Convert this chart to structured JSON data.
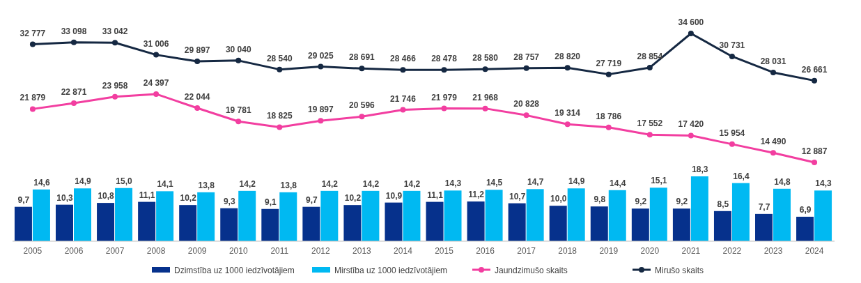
{
  "chart_data": [
    {
      "type": "line",
      "series": [
        {
          "name": "Jaundzimušo skaits",
          "color": "#f23ea0",
          "values": [
            21879,
            22871,
            23958,
            24397,
            22044,
            19781,
            18825,
            19897,
            20596,
            21746,
            21979,
            21968,
            20828,
            19314,
            18786,
            17552,
            17420,
            15954,
            14490,
            12887
          ],
          "value_labels": [
            "21 879",
            "22 871",
            "23 958",
            "24 397",
            "22 044",
            "19 781",
            "18 825",
            "19 897",
            "20 596",
            "21 746",
            "21 979",
            "21 968",
            "20 828",
            "19 314",
            "18 786",
            "17 552",
            "17 420",
            "15 954",
            "14 490",
            "12 887"
          ]
        },
        {
          "name": "Mirušo skaits",
          "color": "#152842",
          "values": [
            32777,
            33098,
            33042,
            31006,
            29897,
            30040,
            28540,
            29025,
            28691,
            28466,
            28478,
            28580,
            28757,
            28820,
            27719,
            28854,
            34600,
            30731,
            28031,
            26661
          ],
          "value_labels": [
            "32 777",
            "33 098",
            "33 042",
            "31 006",
            "29 897",
            "30 040",
            "28 540",
            "29 025",
            "28 691",
            "28 466",
            "28 478",
            "28 580",
            "28 757",
            "28 820",
            "27 719",
            "28 854",
            "34 600",
            "30 731",
            "28 031",
            "26 661"
          ]
        }
      ],
      "tick_labels": false,
      "marker": "circle",
      "legend": "bottom"
    },
    {
      "type": "bar",
      "categories": [
        "2005",
        "2006",
        "2007",
        "2008",
        "2009",
        "2010",
        "2011",
        "2012",
        "2013",
        "2014",
        "2015",
        "2016",
        "2017",
        "2018",
        "2019",
        "2020",
        "2021",
        "2022",
        "2023",
        "2024"
      ],
      "series": [
        {
          "name": "Dzimstība uz 1000 iedzīvotājiem",
          "color": "#06318c",
          "values": [
            9.7,
            10.3,
            10.8,
            11.1,
            10.2,
            9.3,
            9.1,
            9.7,
            10.2,
            10.9,
            11.1,
            11.2,
            10.7,
            10.0,
            9.8,
            9.2,
            9.2,
            8.5,
            7.7,
            6.9
          ],
          "value_labels": [
            "9,7",
            "10,3",
            "10,8",
            "11,1",
            "10,2",
            "9,3",
            "9,1",
            "9,7",
            "10,2",
            "10,9",
            "11,1",
            "11,2",
            "10,7",
            "10,0",
            "9,8",
            "9,2",
            "9,2",
            "8,5",
            "7,7",
            "6,9"
          ]
        },
        {
          "name": "Mirstība uz 1000 iedzīvotājiem",
          "color": "#00b9f2",
          "values": [
            14.6,
            14.9,
            15.0,
            14.1,
            13.8,
            14.2,
            13.8,
            14.2,
            14.2,
            14.2,
            14.3,
            14.5,
            14.7,
            14.9,
            14.4,
            15.1,
            18.3,
            16.4,
            14.8,
            14.3
          ],
          "value_labels": [
            "14,6",
            "14,9",
            "15,0",
            "14,1",
            "13,8",
            "14,2",
            "13,8",
            "14,2",
            "14,2",
            "14,2",
            "14,3",
            "14,5",
            "14,7",
            "14,9",
            "14,4",
            "15,1",
            "18,3",
            "16,4",
            "14,8",
            "14,3"
          ]
        }
      ],
      "ylim": [
        0,
        18.3
      ],
      "tick_labels": "x",
      "legend": "bottom"
    }
  ]
}
